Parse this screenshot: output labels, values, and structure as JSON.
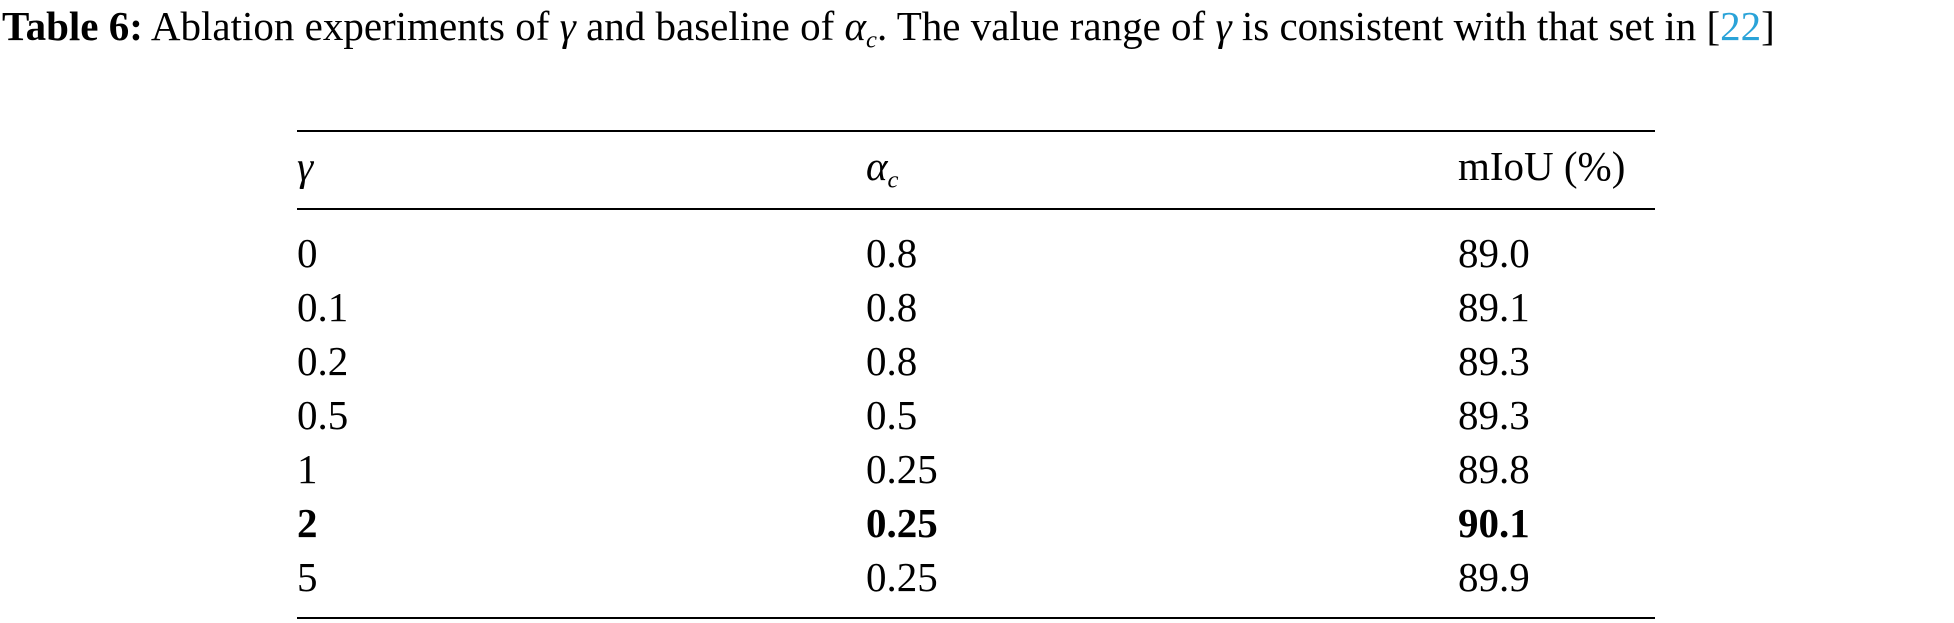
{
  "caption": {
    "label": "Table 6:",
    "parts": [
      "Ablation experiments of ",
      "γ",
      " and baseline of ",
      "α",
      "c",
      ". The value range of ",
      "γ",
      " is consistent with that set in [",
      "22",
      "]"
    ]
  },
  "table": {
    "header": [
      {
        "text": "γ"
      },
      {
        "text": "α",
        "sub": "c"
      },
      {
        "text": "mIoU (%)"
      }
    ],
    "rows": [
      [
        "0",
        "0.8",
        "89.0"
      ],
      [
        "0.1",
        "0.8",
        "89.1"
      ],
      [
        "0.2",
        "0.8",
        "89.3"
      ],
      [
        "0.5",
        "0.5",
        "89.3"
      ],
      [
        "1",
        "0.25",
        "89.8"
      ],
      [
        "2",
        "0.25",
        "90.1"
      ],
      [
        "5",
        "0.25",
        "89.9"
      ]
    ],
    "bold_row": 5
  }
}
